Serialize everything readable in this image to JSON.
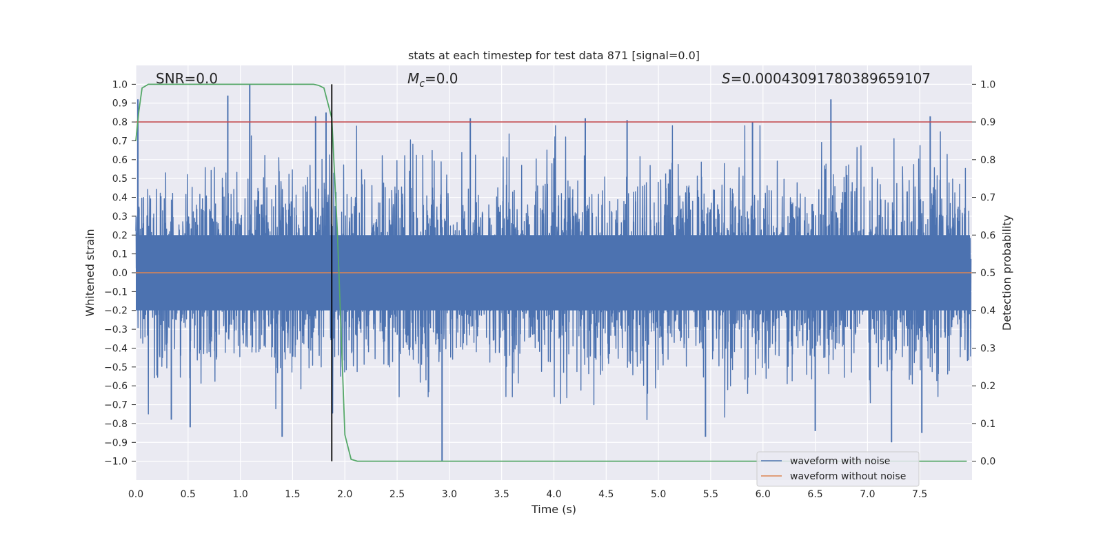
{
  "chart_data": {
    "type": "line",
    "title": "stats at each timestep for test data 871 [signal=0.0]",
    "xlabel": "Time (s)",
    "ylabel": "Whitened strain",
    "y2label": "Detection probability",
    "xlim": [
      0.0,
      8.0
    ],
    "ylim": [
      -1.1,
      1.1
    ],
    "y2lim": [
      -0.05,
      1.05
    ],
    "grid": true,
    "x_ticks": [
      "0.0",
      "0.5",
      "1.0",
      "1.5",
      "2.0",
      "2.5",
      "3.0",
      "3.5",
      "4.0",
      "4.5",
      "5.0",
      "5.5",
      "6.0",
      "6.5",
      "7.0",
      "7.5"
    ],
    "y_ticks": [
      "1.0",
      "0.9",
      "0.8",
      "0.7",
      "0.6",
      "0.5",
      "0.4",
      "0.3",
      "0.2",
      "0.1",
      "0.0",
      "−0.1",
      "−0.2",
      "−0.3",
      "−0.4",
      "−0.5",
      "−0.6",
      "−0.7",
      "−0.8",
      "−0.9",
      "−1.0"
    ],
    "y2_ticks": [
      "1.0",
      "0.9",
      "0.8",
      "0.7",
      "0.6",
      "0.5",
      "0.4",
      "0.3",
      "0.2",
      "0.1",
      "0.0"
    ],
    "annotations": {
      "snr": "SNR=0.0",
      "mc_symbol": "M",
      "mc_sub": "c",
      "mc_value": "=0.0",
      "s_symbol": "S",
      "s_value": "=0.00043091780389659107"
    },
    "threshold": {
      "value": 0.9,
      "axis": "y2",
      "color": "#c44e52"
    },
    "vertical_marker": {
      "x": 1.875,
      "color": "#000000"
    },
    "legend": {
      "placement": "lower-right",
      "entries": [
        {
          "label": "waveform with noise",
          "color": "#4c72b0"
        },
        {
          "label": "waveform without noise",
          "color": "#dd8452"
        }
      ]
    },
    "series": [
      {
        "name": "waveform with noise",
        "axis": "y",
        "color": "#4c72b0",
        "style": "dense-noise",
        "typical_amplitude": 0.4,
        "notable_peaks": [
          {
            "x": 0.02,
            "y": 0.92
          },
          {
            "x": 0.88,
            "y": 0.94
          },
          {
            "x": 1.09,
            "y": 1.0
          },
          {
            "x": 1.72,
            "y": 0.83
          },
          {
            "x": 1.82,
            "y": 0.85
          },
          {
            "x": 3.2,
            "y": 0.82
          },
          {
            "x": 4.3,
            "y": 0.82
          },
          {
            "x": 4.7,
            "y": 0.81
          },
          {
            "x": 5.9,
            "y": 0.8
          },
          {
            "x": 6.65,
            "y": 0.92
          },
          {
            "x": 7.6,
            "y": 0.83
          }
        ],
        "notable_troughs": [
          {
            "x": 0.34,
            "y": -0.78
          },
          {
            "x": 0.52,
            "y": -0.82
          },
          {
            "x": 1.4,
            "y": -0.87
          },
          {
            "x": 2.93,
            "y": -1.0
          },
          {
            "x": 5.45,
            "y": -0.87
          },
          {
            "x": 6.5,
            "y": -0.84
          },
          {
            "x": 7.23,
            "y": -0.9
          },
          {
            "x": 7.52,
            "y": -0.85
          }
        ]
      },
      {
        "name": "waveform without noise",
        "axis": "y",
        "color": "#dd8452",
        "x": [
          0.0,
          8.0
        ],
        "y": [
          0.0,
          0.0
        ]
      },
      {
        "name": "",
        "axis": "y2",
        "color": "#55a868",
        "x": [
          0.0,
          0.03,
          0.06,
          0.12,
          0.25,
          0.5,
          1.0,
          1.5,
          1.7,
          1.75,
          1.8,
          1.875,
          1.93,
          2.0,
          2.06,
          2.12,
          2.2,
          3.0,
          5.0,
          7.95
        ],
        "y": [
          0.85,
          0.93,
          0.99,
          1.0,
          1.0,
          1.0,
          1.0,
          1.0,
          1.0,
          0.997,
          0.99,
          0.91,
          0.6,
          0.07,
          0.005,
          0.0,
          0.0,
          0.0,
          0.0,
          0.0
        ]
      }
    ]
  }
}
